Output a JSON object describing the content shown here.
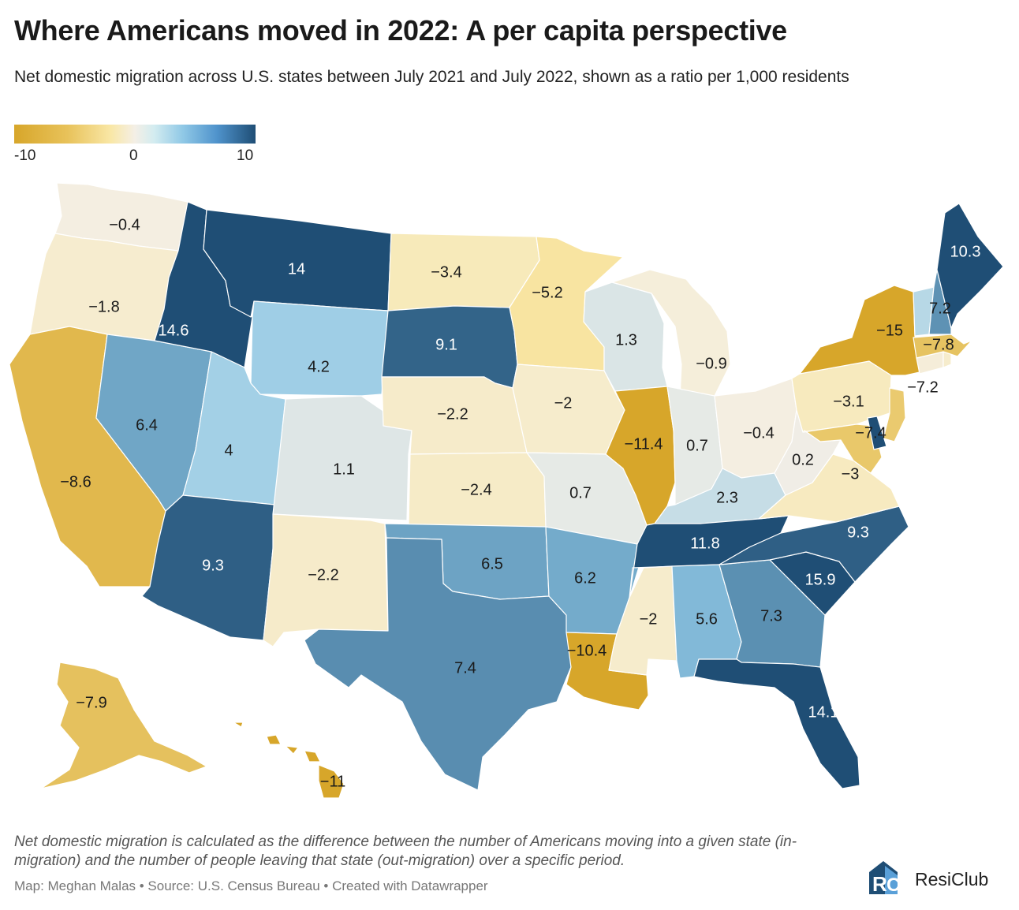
{
  "header": {
    "title": "Where Americans moved in 2022: A per capita perspective",
    "subtitle": "Net domestic migration across U.S. states between July 2021 and July 2022, shown as a ratio per 1,000 residents"
  },
  "legend": {
    "min_label": "-10",
    "mid_label": "0",
    "max_label": "10",
    "min": -10,
    "max": 10
  },
  "colors": {
    "neg_strong": "#d7a62a",
    "neg_light": "#f9e7a6",
    "neutral": "#f4efe6",
    "pos_light": "#8fc8e6",
    "pos_strong": "#1f4e75"
  },
  "chart_data": {
    "type": "choropleth",
    "title": "Where Americans moved in 2022: A per capita perspective",
    "metric": "Net domestic migration per 1,000 residents",
    "color_range": [
      -10,
      10
    ],
    "states": [
      {
        "code": "WA",
        "value": -0.4,
        "label": "-0.4"
      },
      {
        "code": "OR",
        "value": -1.8,
        "label": "-1.8"
      },
      {
        "code": "CA",
        "value": -8.6,
        "label": "-8.6"
      },
      {
        "code": "NV",
        "value": 6.4,
        "label": "6.4"
      },
      {
        "code": "ID",
        "value": 14.6,
        "label": "14.6"
      },
      {
        "code": "MT",
        "value": 14,
        "label": "14"
      },
      {
        "code": "WY",
        "value": 4.2,
        "label": "4.2"
      },
      {
        "code": "UT",
        "value": 4,
        "label": "4"
      },
      {
        "code": "AZ",
        "value": 9.3,
        "label": "9.3"
      },
      {
        "code": "CO",
        "value": 1.1,
        "label": "1.1"
      },
      {
        "code": "NM",
        "value": -2.2,
        "label": "-2.2"
      },
      {
        "code": "ND",
        "value": -3.4,
        "label": "-3.4"
      },
      {
        "code": "SD",
        "value": 9.1,
        "label": "9.1"
      },
      {
        "code": "NE",
        "value": -2.2,
        "label": "-2.2"
      },
      {
        "code": "KS",
        "value": -2.4,
        "label": "-2.4"
      },
      {
        "code": "OK",
        "value": 6.5,
        "label": "6.5"
      },
      {
        "code": "TX",
        "value": 7.4,
        "label": "7.4"
      },
      {
        "code": "MN",
        "value": -5.2,
        "label": "-5.2"
      },
      {
        "code": "IA",
        "value": -2,
        "label": "-2"
      },
      {
        "code": "MO",
        "value": 0.7,
        "label": "0.7"
      },
      {
        "code": "AR",
        "value": 6.2,
        "label": "6.2"
      },
      {
        "code": "LA",
        "value": -10.4,
        "label": "-10.4"
      },
      {
        "code": "WI",
        "value": 1.3,
        "label": "1.3"
      },
      {
        "code": "IL",
        "value": -11.4,
        "label": "-11.4"
      },
      {
        "code": "MI",
        "value": -0.9,
        "label": "-0.9"
      },
      {
        "code": "IN",
        "value": 0.7,
        "label": "0.7"
      },
      {
        "code": "OH",
        "value": -0.4,
        "label": "-0.4"
      },
      {
        "code": "KY",
        "value": 2.3,
        "label": "2.3"
      },
      {
        "code": "TN",
        "value": 11.8,
        "label": "11.8"
      },
      {
        "code": "MS",
        "value": -2,
        "label": "-2"
      },
      {
        "code": "AL",
        "value": 5.6,
        "label": "5.6"
      },
      {
        "code": "GA",
        "value": 7.3,
        "label": "7.3"
      },
      {
        "code": "FL",
        "value": 14.1,
        "label": "14.1"
      },
      {
        "code": "SC",
        "value": 15.9,
        "label": "15.9"
      },
      {
        "code": "NC",
        "value": 9.3,
        "label": "9.3"
      },
      {
        "code": "VA",
        "value": -3,
        "label": "-3"
      },
      {
        "code": "WV",
        "value": 0.2,
        "label": "0.2"
      },
      {
        "code": "PA",
        "value": -3.1,
        "label": "-3.1"
      },
      {
        "code": "NY",
        "value": -15,
        "label": "-15"
      },
      {
        "code": "NJ",
        "value": -7.2,
        "label": "-7.2"
      },
      {
        "code": "MD",
        "value": -7.4,
        "label": "-7.4"
      },
      {
        "code": "DE",
        "value": 12,
        "label": ""
      },
      {
        "code": "CT",
        "value": -1,
        "label": ""
      },
      {
        "code": "RI",
        "value": -2,
        "label": ""
      },
      {
        "code": "MA",
        "value": -7.8,
        "label": "-7.8"
      },
      {
        "code": "VT",
        "value": 3,
        "label": ""
      },
      {
        "code": "NH",
        "value": 7.2,
        "label": "7.2"
      },
      {
        "code": "ME",
        "value": 10.3,
        "label": "10.3"
      },
      {
        "code": "AK",
        "value": -7.9,
        "label": "-7.9"
      },
      {
        "code": "HI",
        "value": -11,
        "label": "-11"
      }
    ]
  },
  "footer": {
    "note": "Net domestic migration is calculated as the difference between the number of Americans moving into a given state (in-migration) and the number of people leaving that state (out-migration) over a specific period.",
    "credit": "Map: Meghan Malas • Source: U.S. Census Bureau • Created with Datawrapper",
    "brand": "ResiClub"
  }
}
